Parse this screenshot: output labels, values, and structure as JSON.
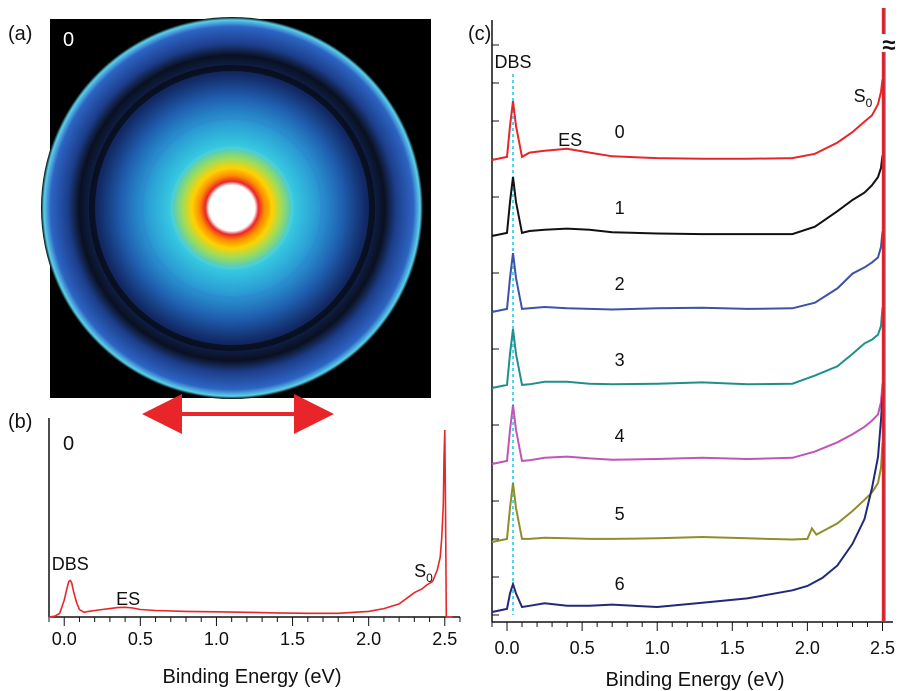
{
  "panels": {
    "a": {
      "letter": "(a)",
      "image_label": "0"
    },
    "b": {
      "letter": "(b)",
      "trace_label": "0"
    },
    "c": {
      "letter": "(c)",
      "break_symbol": "≈"
    }
  },
  "chart_data": [
    {
      "panel": "b",
      "type": "line",
      "xlabel": "Binding Energy (eV)",
      "xlim": [
        -0.1,
        2.6
      ],
      "xticks": [
        0.0,
        0.5,
        1.0,
        1.5,
        2.0,
        2.5
      ],
      "xtick_labels": [
        "0.0",
        "0.5",
        "1.0",
        "1.5",
        "2.0",
        "2.5"
      ],
      "color": "#e8262a",
      "annotations": [
        {
          "text": "DBS",
          "x": 0.04
        },
        {
          "text": "ES",
          "x": 0.42
        },
        {
          "text": "S",
          "sub": "0",
          "x": 2.36
        }
      ],
      "series": [
        {
          "x": [
            -0.1,
            -0.06,
            -0.03,
            0.0,
            0.02,
            0.03,
            0.04,
            0.05,
            0.06,
            0.08,
            0.1,
            0.13,
            0.16,
            0.2,
            0.25,
            0.3,
            0.35,
            0.4,
            0.45,
            0.5,
            0.6,
            0.8,
            1.0,
            1.2,
            1.4,
            1.6,
            1.8,
            1.9,
            2.0,
            2.1,
            2.2,
            2.25,
            2.3,
            2.35,
            2.38,
            2.42,
            2.45,
            2.47,
            2.48,
            2.49,
            2.495,
            2.5,
            2.505,
            2.51,
            2.52,
            2.55
          ],
          "y": [
            0.0,
            0.005,
            0.02,
            0.09,
            0.16,
            0.19,
            0.195,
            0.18,
            0.14,
            0.08,
            0.04,
            0.025,
            0.03,
            0.035,
            0.04,
            0.045,
            0.05,
            0.052,
            0.048,
            0.04,
            0.035,
            0.03,
            0.028,
            0.025,
            0.022,
            0.02,
            0.02,
            0.025,
            0.03,
            0.045,
            0.07,
            0.1,
            0.13,
            0.15,
            0.17,
            0.19,
            0.25,
            0.32,
            0.42,
            0.6,
            0.85,
            1.0,
            0.6,
            0.0,
            0.0,
            0.0
          ]
        }
      ]
    },
    {
      "panel": "c",
      "type": "line",
      "xlabel": "Binding Energy (eV)",
      "xlim": [
        -0.1,
        2.53
      ],
      "xticks": [
        0.0,
        0.5,
        1.0,
        1.5,
        2.0,
        2.5
      ],
      "xtick_labels": [
        "0.0",
        "0.5",
        "1.0",
        "1.5",
        "2.0",
        "2.5"
      ],
      "reference_line_x": 0.04,
      "reference_line_color": "#4fd3f0",
      "annotations": [
        {
          "text": "DBS",
          "x": 0.04
        },
        {
          "text": "ES",
          "x": 0.42
        },
        {
          "text": "S",
          "sub": "0",
          "x": 2.37
        }
      ],
      "series": [
        {
          "name": "0",
          "color": "#e8262a",
          "x": [
            -0.1,
            0.0,
            0.02,
            0.04,
            0.06,
            0.1,
            0.15,
            0.25,
            0.4,
            0.55,
            0.7,
            1.0,
            1.3,
            1.6,
            1.9,
            2.05,
            2.2,
            2.3,
            2.38,
            2.43,
            2.47,
            2.49,
            2.5
          ],
          "y": [
            0.0,
            0.05,
            0.55,
            0.95,
            0.55,
            0.05,
            0.12,
            0.15,
            0.18,
            0.12,
            0.06,
            0.03,
            0.02,
            0.02,
            0.03,
            0.1,
            0.28,
            0.45,
            0.62,
            0.72,
            0.9,
            1.1,
            1.3
          ]
        },
        {
          "name": "1",
          "color": "#111111",
          "x": [
            -0.1,
            0.0,
            0.02,
            0.04,
            0.06,
            0.1,
            0.15,
            0.25,
            0.4,
            0.55,
            0.7,
            1.0,
            1.3,
            1.6,
            1.9,
            2.05,
            2.2,
            2.3,
            2.38,
            2.43,
            2.47,
            2.49,
            2.5
          ],
          "y": [
            0.0,
            0.05,
            0.55,
            0.95,
            0.55,
            0.05,
            0.08,
            0.1,
            0.12,
            0.1,
            0.06,
            0.04,
            0.03,
            0.03,
            0.03,
            0.15,
            0.4,
            0.58,
            0.7,
            0.82,
            0.95,
            1.1,
            1.3
          ]
        },
        {
          "name": "2",
          "color": "#3d52a8",
          "x": [
            -0.1,
            0.0,
            0.02,
            0.04,
            0.06,
            0.1,
            0.15,
            0.25,
            0.4,
            0.55,
            0.7,
            1.0,
            1.3,
            1.6,
            1.9,
            2.05,
            2.2,
            2.3,
            2.38,
            2.43,
            2.47,
            2.49,
            2.5
          ],
          "y": [
            0.0,
            0.05,
            0.55,
            0.95,
            0.55,
            0.05,
            0.06,
            0.08,
            0.06,
            0.05,
            0.04,
            0.06,
            0.07,
            0.05,
            0.06,
            0.15,
            0.38,
            0.62,
            0.72,
            0.8,
            0.88,
            1.05,
            1.3
          ]
        },
        {
          "name": "3",
          "color": "#1f8f8c",
          "x": [
            -0.1,
            0.0,
            0.02,
            0.04,
            0.06,
            0.1,
            0.15,
            0.25,
            0.4,
            0.55,
            0.7,
            1.0,
            1.3,
            1.6,
            1.9,
            2.05,
            2.2,
            2.3,
            2.38,
            2.43,
            2.47,
            2.49,
            2.5
          ],
          "y": [
            0.0,
            0.05,
            0.55,
            0.95,
            0.55,
            0.05,
            0.06,
            0.1,
            0.1,
            0.07,
            0.06,
            0.07,
            0.09,
            0.06,
            0.07,
            0.2,
            0.35,
            0.55,
            0.72,
            0.78,
            0.86,
            1.0,
            1.3
          ]
        },
        {
          "name": "4",
          "color": "#c055b8",
          "x": [
            -0.1,
            0.0,
            0.02,
            0.04,
            0.06,
            0.1,
            0.15,
            0.25,
            0.4,
            0.55,
            0.7,
            1.0,
            1.3,
            1.6,
            1.9,
            2.05,
            2.2,
            2.3,
            2.38,
            2.43,
            2.47,
            2.49,
            2.5
          ],
          "y": [
            0.0,
            0.05,
            0.55,
            0.95,
            0.55,
            0.05,
            0.06,
            0.1,
            0.12,
            0.09,
            0.07,
            0.08,
            0.1,
            0.08,
            0.1,
            0.2,
            0.35,
            0.48,
            0.6,
            0.7,
            0.8,
            1.0,
            1.3
          ]
        },
        {
          "name": "5",
          "color": "#8e8e2a",
          "x": [
            -0.1,
            0.0,
            0.02,
            0.04,
            0.06,
            0.1,
            0.15,
            0.25,
            0.4,
            0.55,
            0.7,
            1.0,
            1.3,
            1.6,
            1.9,
            2.0,
            2.03,
            2.06,
            2.2,
            2.3,
            2.38,
            2.43,
            2.47,
            2.49,
            2.5
          ],
          "y": [
            0.0,
            0.05,
            0.55,
            0.95,
            0.55,
            0.05,
            0.05,
            0.07,
            0.06,
            0.05,
            0.05,
            0.06,
            0.08,
            0.06,
            0.04,
            0.05,
            0.22,
            0.12,
            0.3,
            0.5,
            0.68,
            0.8,
            0.95,
            1.2,
            1.6
          ]
        },
        {
          "name": "6",
          "color": "#222a78",
          "x": [
            -0.1,
            0.0,
            0.02,
            0.04,
            0.06,
            0.1,
            0.15,
            0.25,
            0.4,
            0.55,
            0.7,
            1.0,
            1.3,
            1.6,
            1.9,
            2.0,
            2.1,
            2.2,
            2.3,
            2.38,
            2.43,
            2.47,
            2.49,
            2.5
          ],
          "y": [
            0.0,
            0.05,
            0.3,
            0.45,
            0.3,
            0.08,
            0.1,
            0.14,
            0.1,
            0.1,
            0.12,
            0.08,
            0.15,
            0.22,
            0.35,
            0.42,
            0.55,
            0.75,
            1.1,
            1.5,
            2.0,
            2.5,
            3.1,
            3.5
          ]
        }
      ]
    }
  ]
}
